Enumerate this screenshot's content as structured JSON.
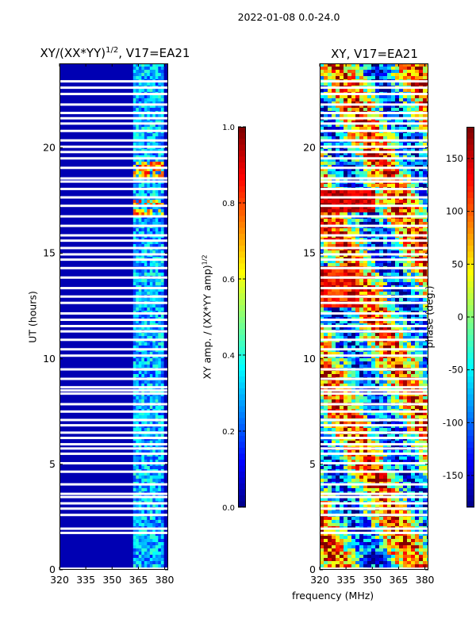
{
  "suptitle": "2022-01-08 0.0-24.0",
  "chart_data": [
    {
      "type": "heatmap",
      "title": "XY/(XX*YY)",
      "title_exponent": "1/2",
      "title_suffix": ", V17=EA21",
      "xlabel": "",
      "ylabel": "UT (hours)",
      "xlim": [
        320,
        382
      ],
      "ylim": [
        0,
        24
      ],
      "xticks": [
        "320",
        "335",
        "350",
        "365",
        "380"
      ],
      "yticks": [
        "0",
        "5",
        "10",
        "15",
        "20"
      ],
      "colorbar": {
        "label": "XY amp. / (XX*YY amp)",
        "label_exponent": "1/2",
        "range": [
          0.0,
          1.0
        ],
        "ticks": [
          "0.0",
          "0.2",
          "0.4",
          "0.6",
          "0.8",
          "1.0"
        ],
        "colormap": "jet"
      },
      "features": {
        "low_band_value": 0.05,
        "high_band_start_mhz": 362,
        "high_band_value_range": [
          0.15,
          0.45
        ],
        "bright_hours": [
          17.0,
          17.5,
          18.8,
          19.2
        ],
        "bright_value": 0.9
      }
    },
    {
      "type": "heatmap",
      "title": "XY, V17=EA21",
      "xlabel": "frequency (MHz)",
      "ylabel": "",
      "xlim": [
        320,
        382
      ],
      "ylim": [
        0,
        24
      ],
      "xticks": [
        "320",
        "335",
        "350",
        "365",
        "380"
      ],
      "yticks": [
        "0",
        "5",
        "10",
        "15",
        "20"
      ],
      "colorbar": {
        "label": "phase (deg.)",
        "range": [
          -180,
          180
        ],
        "ticks": [
          "-150",
          "-100",
          "-50",
          "0",
          "50",
          "100",
          "150"
        ],
        "colormap": "jet"
      }
    }
  ],
  "flagged_gaps_hours": [
    0.05,
    1.75,
    1.95,
    2.6,
    2.9,
    3.15,
    3.45,
    3.6,
    4.05,
    4.65,
    5.05,
    5.5,
    5.75,
    5.95,
    6.25,
    6.5,
    6.85,
    7.1,
    7.5,
    7.85,
    8.35,
    8.5,
    8.65,
    9.05,
    9.5,
    10.15,
    10.45,
    10.9,
    11.3,
    11.55,
    11.85,
    12.15,
    12.65,
    12.95,
    13.35,
    13.85,
    14.3,
    14.7,
    14.95,
    15.25,
    15.6,
    15.85,
    16.3,
    16.75,
    17.25,
    17.65,
    18.05,
    18.4,
    18.55,
    19.05,
    19.5,
    19.8,
    20.05,
    20.35,
    20.8,
    21.15,
    21.4,
    21.65,
    22.05,
    22.55,
    22.85,
    23.15
  ]
}
